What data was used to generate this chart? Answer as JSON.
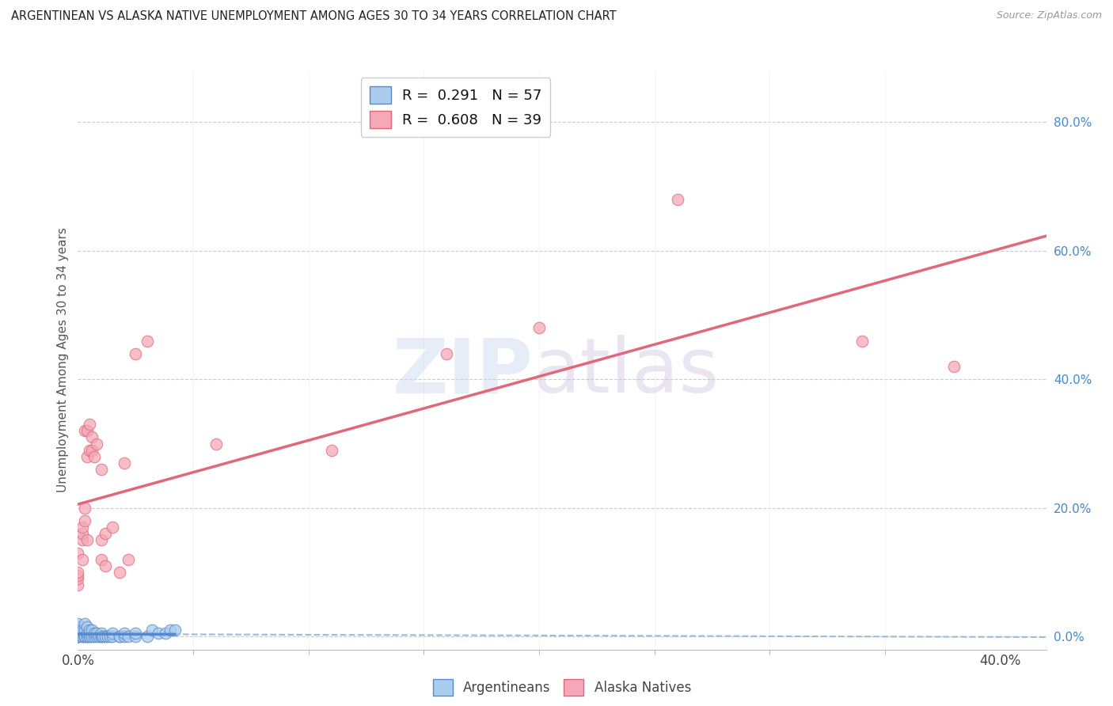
{
  "title": "ARGENTINEAN VS ALASKA NATIVE UNEMPLOYMENT AMONG AGES 30 TO 34 YEARS CORRELATION CHART",
  "source": "Source: ZipAtlas.com",
  "ylabel": "Unemployment Among Ages 30 to 34 years",
  "ylabel_right_ticks": [
    "80.0%",
    "60.0%",
    "40.0%",
    "20.0%",
    "0.0%"
  ],
  "ylabel_right_vals": [
    0.8,
    0.6,
    0.4,
    0.2,
    0.0
  ],
  "xlim": [
    0.0,
    0.42
  ],
  "ylim": [
    -0.02,
    0.88
  ],
  "argentinean_color": "#aaccee",
  "alaska_color": "#f4a8b8",
  "trendline_arg_color": "#5588cc",
  "trendline_alaska_color": "#e06878",
  "argentinean_R": 0.291,
  "argentinean_N": 57,
  "alaska_R": 0.608,
  "alaska_N": 39,
  "argentinean_points": [
    [
      0.0,
      0.0
    ],
    [
      0.0,
      0.0
    ],
    [
      0.0,
      0.0
    ],
    [
      0.0,
      0.0
    ],
    [
      0.0,
      0.0
    ],
    [
      0.0,
      0.0
    ],
    [
      0.0,
      0.005
    ],
    [
      0.0,
      0.01
    ],
    [
      0.0,
      0.01
    ],
    [
      0.0,
      0.01
    ],
    [
      0.0,
      0.015
    ],
    [
      0.0,
      0.02
    ],
    [
      0.002,
      0.0
    ],
    [
      0.002,
      0.0
    ],
    [
      0.002,
      0.005
    ],
    [
      0.002,
      0.01
    ],
    [
      0.003,
      0.0
    ],
    [
      0.003,
      0.0
    ],
    [
      0.003,
      0.01
    ],
    [
      0.003,
      0.02
    ],
    [
      0.004,
      0.0
    ],
    [
      0.004,
      0.0
    ],
    [
      0.004,
      0.005
    ],
    [
      0.004,
      0.015
    ],
    [
      0.005,
      0.0
    ],
    [
      0.005,
      0.0
    ],
    [
      0.005,
      0.005
    ],
    [
      0.005,
      0.01
    ],
    [
      0.006,
      0.0
    ],
    [
      0.006,
      0.01
    ],
    [
      0.007,
      0.0
    ],
    [
      0.007,
      0.005
    ],
    [
      0.008,
      0.0
    ],
    [
      0.008,
      0.005
    ],
    [
      0.009,
      0.0
    ],
    [
      0.01,
      0.0
    ],
    [
      0.01,
      0.0
    ],
    [
      0.01,
      0.005
    ],
    [
      0.011,
      0.0
    ],
    [
      0.012,
      0.0
    ],
    [
      0.013,
      0.0
    ],
    [
      0.014,
      0.0
    ],
    [
      0.015,
      0.0
    ],
    [
      0.015,
      0.005
    ],
    [
      0.018,
      0.0
    ],
    [
      0.018,
      0.0
    ],
    [
      0.02,
      0.0
    ],
    [
      0.02,
      0.005
    ],
    [
      0.022,
      0.0
    ],
    [
      0.025,
      0.0
    ],
    [
      0.025,
      0.005
    ],
    [
      0.03,
      0.0
    ],
    [
      0.032,
      0.01
    ],
    [
      0.035,
      0.005
    ],
    [
      0.038,
      0.005
    ],
    [
      0.04,
      0.01
    ],
    [
      0.042,
      0.01
    ]
  ],
  "alaska_points": [
    [
      0.0,
      0.08
    ],
    [
      0.0,
      0.09
    ],
    [
      0.0,
      0.095
    ],
    [
      0.0,
      0.1
    ],
    [
      0.0,
      0.13
    ],
    [
      0.002,
      0.12
    ],
    [
      0.002,
      0.15
    ],
    [
      0.002,
      0.16
    ],
    [
      0.002,
      0.17
    ],
    [
      0.003,
      0.18
    ],
    [
      0.003,
      0.2
    ],
    [
      0.003,
      0.32
    ],
    [
      0.004,
      0.15
    ],
    [
      0.004,
      0.28
    ],
    [
      0.004,
      0.32
    ],
    [
      0.005,
      0.29
    ],
    [
      0.005,
      0.33
    ],
    [
      0.006,
      0.29
    ],
    [
      0.006,
      0.31
    ],
    [
      0.007,
      0.28
    ],
    [
      0.008,
      0.3
    ],
    [
      0.01,
      0.26
    ],
    [
      0.01,
      0.15
    ],
    [
      0.01,
      0.12
    ],
    [
      0.012,
      0.16
    ],
    [
      0.012,
      0.11
    ],
    [
      0.015,
      0.17
    ],
    [
      0.018,
      0.1
    ],
    [
      0.02,
      0.27
    ],
    [
      0.022,
      0.12
    ],
    [
      0.025,
      0.44
    ],
    [
      0.03,
      0.46
    ],
    [
      0.06,
      0.3
    ],
    [
      0.11,
      0.29
    ],
    [
      0.16,
      0.44
    ],
    [
      0.2,
      0.48
    ],
    [
      0.26,
      0.68
    ],
    [
      0.34,
      0.46
    ],
    [
      0.38,
      0.42
    ]
  ]
}
